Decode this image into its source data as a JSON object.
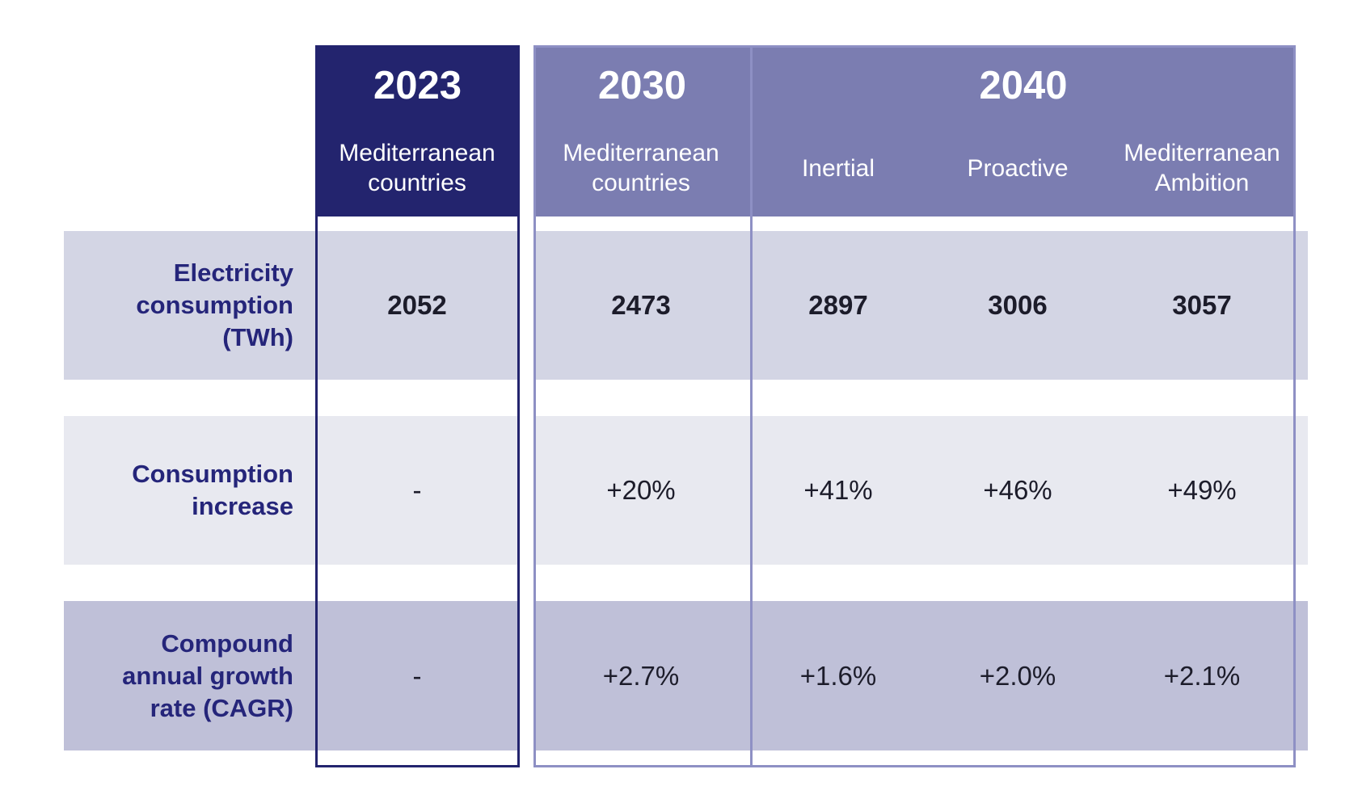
{
  "header": {
    "groups": [
      {
        "year": "2023",
        "columns": [
          "Mediterranean countries"
        ]
      },
      {
        "year": "2030",
        "columns": [
          "Mediterranean countries"
        ]
      },
      {
        "year": "2040",
        "columns": [
          "Inertial",
          "Proactive",
          "Mediterranean Ambition"
        ]
      }
    ]
  },
  "table": {
    "rows": [
      {
        "label": "Electricity consumption (TWh)",
        "cells": [
          "2052",
          "2473",
          "2897",
          "3006",
          "3057"
        ]
      },
      {
        "label": "Consumption increase",
        "cells": [
          "-",
          "+20%",
          "+41%",
          "+46%",
          "+49%"
        ]
      },
      {
        "label": "Compound annual growth rate (CAGR)",
        "cells": [
          "-",
          "+2.7%",
          "+1.6%",
          "+2.0%",
          "+2.1%"
        ]
      }
    ]
  }
}
